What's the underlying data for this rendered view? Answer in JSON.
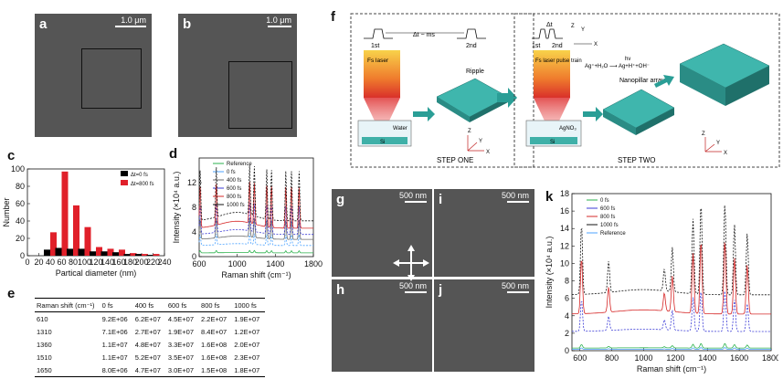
{
  "panels": {
    "a": {
      "label": "a",
      "scale": "1.0 μm"
    },
    "b": {
      "label": "b",
      "scale": "1.0 μm"
    },
    "g": {
      "label": "g",
      "scale": "500 nm"
    },
    "h": {
      "label": "h",
      "scale": "500 nm"
    },
    "i": {
      "label": "i",
      "scale": "500 nm"
    },
    "j": {
      "label": "j",
      "scale": "500 nm"
    }
  },
  "panel_c": {
    "label": "c"
  },
  "panel_d": {
    "label": "d"
  },
  "panel_e": {
    "label": "e"
  },
  "panel_f": {
    "label": "f"
  },
  "panel_k": {
    "label": "k"
  },
  "chart_data": [
    {
      "id": "c",
      "type": "bar",
      "xlabel": "Partical diameter (nm)",
      "ylabel": "Number",
      "xlim": [
        0,
        240
      ],
      "ylim": [
        0,
        100
      ],
      "xticks": [
        "0",
        "20",
        "40",
        "60",
        "80",
        "100",
        "120",
        "140",
        "160",
        "180",
        "200",
        "220",
        "240"
      ],
      "yticks": [
        "0",
        "20",
        "40",
        "60",
        "80",
        "100"
      ],
      "categories": [
        40,
        60,
        80,
        100,
        120,
        140,
        160,
        180,
        200,
        220
      ],
      "series": [
        {
          "name": "Δt=0 fs",
          "color": "#000000",
          "values": [
            7,
            9,
            8,
            8,
            5,
            5,
            4,
            2,
            2,
            1
          ]
        },
        {
          "name": "Δt=800 fs",
          "color": "#e0202a",
          "values": [
            27,
            97,
            58,
            33,
            10,
            8,
            7,
            3,
            2,
            2
          ]
        }
      ],
      "legend": "top-right"
    },
    {
      "id": "d",
      "type": "line",
      "xlabel": "Raman shift (cm⁻¹)",
      "ylabel": "Intensity (×10⁴ a.u.)",
      "xlim": [
        600,
        1800
      ],
      "ylim": [
        0,
        16
      ],
      "xticks": [
        "600",
        "1000",
        "1400",
        "1800"
      ],
      "yticks": [
        "0",
        "4",
        "8",
        "12"
      ],
      "peaks": [
        610,
        780,
        1130,
        1180,
        1310,
        1360,
        1510,
        1570,
        1650
      ],
      "series": [
        {
          "name": "Reference",
          "color": "#2bb24c",
          "baseline": 0.6,
          "scale": 0.1
        },
        {
          "name": "0 fs",
          "color": "#4da3ff",
          "baseline": 1.8,
          "scale": 0.5
        },
        {
          "name": "400 fs",
          "color": "#6b6b6b",
          "baseline": 2.8,
          "scale": 0.9
        },
        {
          "name": "600 fs",
          "color": "#3b3bd6",
          "baseline": 3.6,
          "scale": 1.3
        },
        {
          "name": "800 fs",
          "color": "#d62828",
          "baseline": 4.6,
          "scale": 1.9
        },
        {
          "name": "1000 fs",
          "color": "#111111",
          "baseline": 5.8,
          "scale": 2.3
        }
      ],
      "legend": "top-left"
    },
    {
      "id": "k",
      "type": "line",
      "xlabel": "Raman shift (cm⁻¹)",
      "ylabel": "Intensity (×10⁴ a.u.)",
      "xlim": [
        550,
        1800
      ],
      "ylim": [
        0,
        18
      ],
      "xticks": [
        "600",
        "800",
        "1000",
        "1200",
        "1400",
        "1600",
        "1800"
      ],
      "yticks": [
        "0",
        "2",
        "4",
        "6",
        "8",
        "10",
        "12",
        "14",
        "16",
        "18"
      ],
      "peaks": [
        610,
        780,
        1130,
        1180,
        1310,
        1360,
        1510,
        1570,
        1650
      ],
      "series": [
        {
          "name": "0 fs",
          "color": "#2bb24c",
          "baseline": 0.3,
          "scale": 0.05
        },
        {
          "name": "600 fs",
          "color": "#3b3bd6",
          "baseline": 2.2,
          "scale": 0.45
        },
        {
          "name": "800 fs",
          "color": "#d62828",
          "baseline": 4.2,
          "scale": 0.8
        },
        {
          "name": "1000 fs",
          "color": "#111111",
          "baseline": 6.4,
          "scale": 1.0
        },
        {
          "name": "Reference",
          "color": "#4da3ff",
          "baseline": 0.15,
          "scale": 0.02
        }
      ],
      "peak_heights_1000fs": [
        14.5,
        10.0,
        9.0,
        11.5,
        15.0,
        17.0,
        17.0,
        14.5,
        13.5
      ],
      "legend": "top-left"
    },
    {
      "id": "e",
      "type": "table",
      "headers": [
        "Raman shift (cm⁻¹)",
        "0 fs",
        "400 fs",
        "600 fs",
        "800 fs",
        "1000 fs"
      ],
      "rows": [
        [
          "610",
          "9.2E+06",
          "6.2E+07",
          "4.5E+07",
          "2.2E+07",
          "1.9E+07"
        ],
        [
          "1310",
          "7.1E+06",
          "2.7E+07",
          "1.9E+07",
          "8.4E+07",
          "1.2E+07"
        ],
        [
          "1360",
          "1.1E+07",
          "4.8E+07",
          "3.3E+07",
          "1.6E+08",
          "2.0E+07"
        ],
        [
          "1510",
          "1.1E+07",
          "5.2E+07",
          "3.5E+07",
          "1.6E+08",
          "2.3E+07"
        ],
        [
          "1650",
          "8.0E+06",
          "4.7E+07",
          "3.0E+07",
          "1.5E+08",
          "1.8E+07"
        ]
      ]
    }
  ],
  "schematic": {
    "step1": {
      "laser": "Fs laser",
      "pulse1": "1st",
      "pulse2": "2nd",
      "delay": "Δt ~ ms",
      "water": "Water",
      "si": "Si",
      "ripple": "Ripple",
      "caption": "STEP ONE",
      "axes": [
        "Z",
        "Y",
        "X"
      ]
    },
    "step2": {
      "laser": "Fs laser pulse train",
      "pulse1": "1st",
      "pulse2": "2nd",
      "delay": "Δt",
      "agno3": "AgNO₃",
      "si": "Si",
      "reaction": "Ag⁺+H₂O ⟶ Ag+H⁺+OH⁻",
      "hv": "hν",
      "nanopillar": "Nanopillar array",
      "caption": "STEP TWO",
      "axes": [
        "Z",
        "Y",
        "X"
      ]
    }
  }
}
